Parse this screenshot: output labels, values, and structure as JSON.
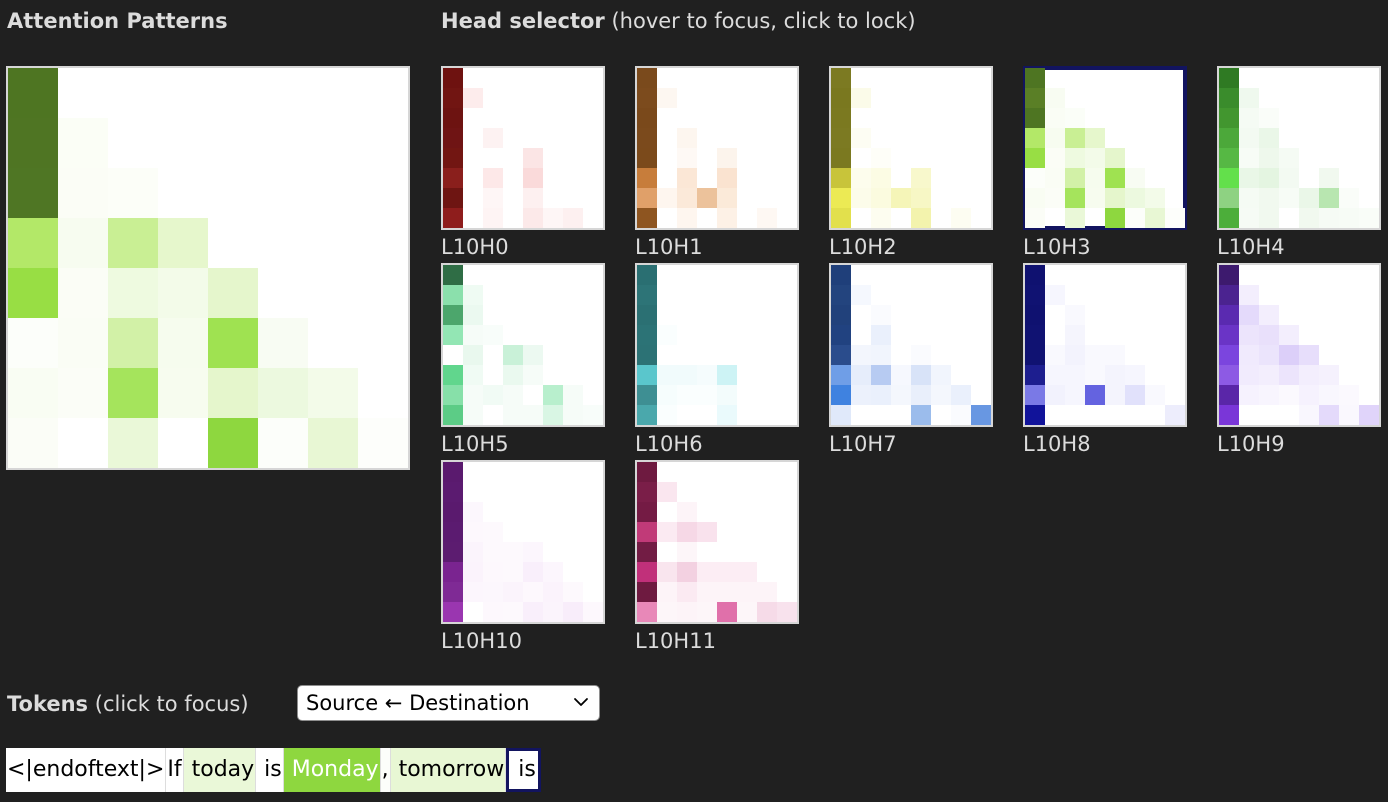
{
  "attention_panel": {
    "title": "Attention Patterns"
  },
  "head_selector": {
    "title": "Head selector",
    "hint": "(hover to focus, click to lock)",
    "locked_head": "L10H3",
    "heads": [
      {
        "label": "L10H0",
        "base": "#6e1210",
        "row_colors": {
          "1": [
            "#ffffff",
            "#fdecec"
          ],
          "3": [
            "#ffffff",
            "#ffffff",
            "#fdf2f2"
          ],
          "4": [
            "#ffffff",
            "#ffffff",
            "#ffffff",
            "#ffffff",
            "#fbe5e5"
          ],
          "5": [
            "#ffffff",
            "#ffffff",
            "#fde8e8",
            "#ffffff",
            "#fadada"
          ],
          "6": [
            "#ffffff",
            "#ffffff",
            "#fef6f6",
            "#ffffff",
            "#fdf0f0"
          ],
          "7": [
            "#ffffff",
            "#ffffff",
            "#fef4f4",
            "#ffffff",
            "#fce9e9",
            "#fef6f6",
            "#fdf0f0"
          ]
        },
        "col0": [
          "#6e1210",
          "#711512",
          "#6d1311",
          "#6f1414",
          "#721612",
          "#8a1f1c",
          "#6e1512",
          "#8e1d1c"
        ]
      },
      {
        "label": "L10H1",
        "base": "#7a4a1c",
        "row_colors": {
          "1": [
            "#ffffff",
            "#fdf7f1"
          ],
          "3": [
            "#ffffff",
            "#ffffff",
            "#fdf6ef"
          ],
          "4": [
            "#ffffff",
            "#ffffff",
            "#fef9f5",
            "#ffffff",
            "#fcf4ec"
          ],
          "5": [
            "#ffffff",
            "#ffffff",
            "#fbe7d6",
            "#ffffff",
            "#fae3d0"
          ],
          "6": [
            "#ffffff",
            "#fef6ef",
            "#fbe9d9",
            "#ecc29b",
            "#fbead9"
          ],
          "7": [
            "#ffffff",
            "#ffffff",
            "#fef6ef",
            "#ffffff",
            "#fdf1e6",
            "#ffffff",
            "#fef8f3"
          ]
        },
        "col0": [
          "#7a4a1c",
          "#7c4b1d",
          "#7a491b",
          "#7b4a1c",
          "#7b4a1b",
          "#c77d3b",
          "#e0a069",
          "#8e5520"
        ]
      },
      {
        "label": "L10H2",
        "base": "#7c7a22",
        "row_colors": {
          "1": [
            "#ffffff",
            "#fbfbe9"
          ],
          "3": [
            "#ffffff",
            "#fdfdf3"
          ],
          "4": [
            "#ffffff",
            "#ffffff",
            "#fefef8"
          ],
          "5": [
            "#ffffff",
            "#fdfded",
            "#fcfce4",
            "#ffffff",
            "#f8f8cc"
          ],
          "6": [
            "#ffffff",
            "#fcfcea",
            "#fbfbdf",
            "#f5f5b8",
            "#f7f7c5"
          ],
          "7": [
            "#ffffff",
            "#ffffff",
            "#fdfdf0",
            "#ffffff",
            "#f3f3ad",
            "#ffffff",
            "#fdfdf2"
          ]
        },
        "col0": [
          "#7c7a22",
          "#7a781f",
          "#7b7920",
          "#7c7a22",
          "#7b7920",
          "#c8c43a",
          "#ecea54",
          "#e2e04c"
        ]
      },
      {
        "label": "L10H3",
        "base": "#4e7522",
        "row_colors": {
          "1": [
            "#ffffff",
            "#f8fcf2"
          ],
          "2": [
            "#ffffff",
            "#fafdf5",
            "#fbfef8"
          ],
          "3": [
            "#b3e868",
            "#f7fcf0",
            "#c9ef94",
            "#e6f7cc"
          ],
          "4": [
            "#98de44",
            "#fbfdf6",
            "#eefae0",
            "#f3fbe9",
            "#e5f6cc"
          ],
          "5": [
            "#fcfefa",
            "#fafdf5",
            "#d2f1a7",
            "#f6fcee",
            "#9fe251",
            "#f8fcf3"
          ],
          "6": [
            "#f9fdf3",
            "#fbfdf7",
            "#a5e45c",
            "#f7fcef",
            "#e5f6cc",
            "#ecf9df",
            "#f3fbe9"
          ],
          "7": [
            "#fbfdf7",
            "#ffffff",
            "#eaf8d8",
            "#ffffff",
            "#8ed73f",
            "#fcfefa",
            "#e8f7d4",
            "#fdfefb"
          ]
        },
        "col0": [
          "#4e7522",
          "#5a7f26",
          "#4e7522",
          "#b3e868",
          "#98de44",
          "#fcfefa",
          "#f9fdf3",
          "#fbfdf7"
        ]
      },
      {
        "label": "L10H4",
        "base": "#2f7a23",
        "row_colors": {
          "1": [
            "#ffffff",
            "#eff9ee"
          ],
          "2": [
            "#ffffff",
            "#f5fbf4",
            "#fafdf9"
          ],
          "3": [
            "#ffffff",
            "#f3faf2",
            "#eaf7e8"
          ],
          "4": [
            "#ffffff",
            "#f7fcf6",
            "#eef8ec",
            "#f5fbf4"
          ],
          "5": [
            "#ffffff",
            "#e9f7e7",
            "#e4f5e1",
            "#f3faf2",
            "#ffffff",
            "#f1f9ef"
          ],
          "6": [
            "#ffffff",
            "#f5fbf4",
            "#f1f9ef",
            "#f7fcf6",
            "#eaf7e8",
            "#b8e6b0",
            "#fafdf9"
          ],
          "7": [
            "#ffffff",
            "#f6fbf5",
            "#f1f9ef",
            "#ffffff",
            "#f1f9ef",
            "#f6fbf5",
            "#f7fcf6",
            "#f9fdf8"
          ]
        },
        "col0": [
          "#2f7a23",
          "#3a8c2c",
          "#42962f",
          "#4ca83a",
          "#56b844",
          "#63e04b",
          "#8ed282",
          "#4cae3a"
        ]
      },
      {
        "label": "L10H5",
        "base": "#2f6d45",
        "row_colors": {
          "1": [
            "#ffffff",
            "#effbf3"
          ],
          "2": [
            "#a9ebc4",
            "#ebf9f0"
          ],
          "3": [
            "#ffffff",
            "#f6fcf8",
            "#f8fdfa"
          ],
          "4": [
            "#ffffff",
            "#e9f8ee",
            "#ffffff",
            "#c9f1d8",
            "#ecf9f1"
          ],
          "5": [
            "#ffffff",
            "#f0fbf4",
            "#ffffff",
            "#eaf9ef",
            "#f6fcf8"
          ],
          "6": [
            "#ffffff",
            "#f6fcf8",
            "#f1fbf5",
            "#f6fcf8",
            "#ffffff",
            "#b8efcd",
            "#f6fcf8"
          ],
          "7": [
            "#ffffff",
            "#f6fcf8",
            "#ffffff",
            "#f6fcf8",
            "#f6fcf8",
            "#d9f6e4",
            "#f6fcf8",
            "#f8fdfa"
          ]
        },
        "col0": [
          "#2f6d45",
          "#8be0ac",
          "#4ca66c",
          "#93e6b4",
          "#ffffff",
          "#61d68d",
          "#87e0a9",
          "#5ccc86"
        ]
      },
      {
        "label": "L10H6",
        "base": "#2a6f72",
        "row_colors": {
          "3": [
            "#ffffff",
            "#fafefe"
          ],
          "5": [
            "#ffffff",
            "#f1fbfc",
            "#f1fbfc",
            "#f5fcfd",
            "#cdf3f5"
          ],
          "6": [
            "#ffffff",
            "#f6fdfd",
            "#fafefe",
            "#fafefe",
            "#f3fcfc"
          ],
          "7": [
            "#ffffff",
            "#fafefe",
            "#ffffff",
            "#ffffff",
            "#eafafc"
          ]
        },
        "col0": [
          "#2a6f72",
          "#2d7477",
          "#2b7073",
          "#2c7376",
          "#2c7275",
          "#5ac6cc",
          "#3e8f93",
          "#4aa8ac"
        ]
      },
      {
        "label": "L10H7",
        "base": "#1f3f7a",
        "row_colors": {
          "1": [
            "#ffffff",
            "#f5f8fe"
          ],
          "2": [
            "#ffffff",
            "#ffffff",
            "#fafbfe"
          ],
          "3": [
            "#ffffff",
            "#ffffff",
            "#eaf0fc"
          ],
          "4": [
            "#ffffff",
            "#f3f6fd",
            "#f1f5fd",
            "#ffffff",
            "#fafbfe"
          ],
          "5": [
            "#ffffff",
            "#e6edfb",
            "#b7cbf2",
            "#f6f8fe",
            "#d8e3f8",
            "#f1f5fd"
          ],
          "6": [
            "#ffffff",
            "#ecf1fc",
            "#eaf0fc",
            "#f4f7fd",
            "#e9effb",
            "#f4f7fd",
            "#eaf0fc"
          ],
          "7": [
            "#e0e9fa",
            "#ffffff",
            "#ffffff",
            "#ffffff",
            "#9bbcec",
            "#ffffff",
            "#fafbfe",
            "#6897e2"
          ]
        },
        "col0": [
          "#1f3f7a",
          "#23447e",
          "#21417b",
          "#214280",
          "#2a4c8c",
          "#6f9ee7",
          "#3f82e0",
          "#e0e9fa"
        ]
      },
      {
        "label": "L10H8",
        "base": "#0f1170",
        "row_colors": {
          "1": [
            "#ffffff",
            "#f6f6fe"
          ],
          "2": [
            "#ffffff",
            "#ffffff",
            "#f9f9fe"
          ],
          "3": [
            "#ffffff",
            "#ffffff",
            "#f5f5fd"
          ],
          "4": [
            "#ffffff",
            "#f9f9fe",
            "#f3f3fd",
            "#f9f9fe",
            "#f9f9fe"
          ],
          "5": [
            "#ffffff",
            "#f6f6fe",
            "#f6f6fe",
            "#f9f9fe",
            "#f4f4fd",
            "#f6f6fe"
          ],
          "6": [
            "#ffffff",
            "#f2f2fd",
            "#f6f6fe",
            "#6463e0",
            "#f4f4fd",
            "#e1e1fb",
            "#f9f9fe"
          ],
          "7": [
            "#ffffff",
            "#ffffff",
            "#ffffff",
            "#ffffff",
            "#ffffff",
            "#ffffff",
            "#ffffff",
            "#ededfc"
          ]
        },
        "col0": [
          "#0f1170",
          "#101272",
          "#0f1170",
          "#101272",
          "#101272",
          "#1d1e8f",
          "#7a79e6",
          "#11139a"
        ]
      },
      {
        "label": "L10H9",
        "base": "#3d1a6e",
        "row_colors": {
          "1": [
            "#ffffff",
            "#f3eefd"
          ],
          "2": [
            "#ffffff",
            "#e4dafb",
            "#f3eefd"
          ],
          "3": [
            "#ffffff",
            "#ece4fc",
            "#e9e0fb",
            "#f3eefd"
          ],
          "4": [
            "#ffffff",
            "#f0eafd",
            "#ebe4fc",
            "#dccff9",
            "#e7defb"
          ],
          "5": [
            "#ffffff",
            "#f1ebfd",
            "#f3eefd",
            "#ece4fc",
            "#f3eefd",
            "#f5f1fd"
          ],
          "6": [
            "#ffffff",
            "#f6f2fe",
            "#f8f5fe",
            "#fbf9fe",
            "#f6f2fe",
            "#f9f7fe",
            "#fbf9fe"
          ],
          "7": [
            "#ffffff",
            "#ffffff",
            "#ffffff",
            "#ffffff",
            "#f9f7fe",
            "#e4dafb",
            "#faf8fe",
            "#e0d4fa"
          ]
        },
        "col0": [
          "#3d1a6e",
          "#4b2390",
          "#5a2ab0",
          "#6a34c6",
          "#7b45de",
          "#8d5ae4",
          "#5a26a8",
          "#7a36d8"
        ]
      },
      {
        "label": "L10H10",
        "base": "#5a1a6e",
        "row_colors": {
          "2": [
            "#ffffff",
            "#fcf7fd"
          ],
          "3": [
            "#ffffff",
            "#fdf8fd",
            "#fdf9fd"
          ],
          "4": [
            "#ffffff",
            "#fbf4fc",
            "#fdf9fd",
            "#fdf9fd",
            "#fcf6fd"
          ],
          "5": [
            "#ffffff",
            "#fbf3fc",
            "#fdf8fd",
            "#fdf9fd",
            "#f9effb",
            "#fcf6fd"
          ],
          "6": [
            "#ffffff",
            "#fcf6fd",
            "#fcf7fd",
            "#fbf4fc",
            "#fdf8fd",
            "#fbf3fc",
            "#fdf9fd"
          ],
          "7": [
            "#ffffff",
            "#ffffff",
            "#fdf8fd",
            "#fdf9fd",
            "#f9effb",
            "#fbf4fc",
            "#f8edfa",
            "#fdf8fd"
          ]
        },
        "col0": [
          "#5a1a6e",
          "#5b1b70",
          "#5a1a6e",
          "#5b1b70",
          "#5c1c70",
          "#7a2490",
          "#7f2a95",
          "#9a36b0"
        ]
      },
      {
        "label": "L10H11",
        "base": "#6e1a40",
        "row_colors": {
          "1": [
            "#ffffff",
            "#fae6ef"
          ],
          "2": [
            "#ffffff",
            "#ffffff",
            "#fdf4f8"
          ],
          "3": [
            "#ffffff",
            "#fbeaf2",
            "#f6d8e6",
            "#f9e2ed"
          ],
          "4": [
            "#ffffff",
            "#ffffff",
            "#fdf6f9"
          ],
          "5": [
            "#ffffff",
            "#f9e5ee",
            "#f3d1e1",
            "#fcedf4",
            "#fcedf4",
            "#fcedf4"
          ],
          "6": [
            "#ffffff",
            "#fdf4f8",
            "#fbeaf2",
            "#fdf4f8",
            "#fdf4f8",
            "#fdf4f8",
            "#fdf4f8"
          ],
          "7": [
            "#ffffff",
            "#fdf6f9",
            "#fdf4f8",
            "#fdf6f9",
            "#e070aa",
            "#fdf6f9",
            "#f6dbe8",
            "#f8e2ed"
          ]
        },
        "col0": [
          "#6e1a40",
          "#7a1e48",
          "#741b44",
          "#c13a78",
          "#721c44",
          "#c1307a",
          "#6e1a40",
          "#e888b8"
        ]
      }
    ]
  },
  "main_pattern": {
    "size": 8,
    "rows": [
      [
        "#4e7522"
      ],
      [
        "#4f7523",
        "#fbfef6"
      ],
      [
        "#4f7624",
        "#fbfdf6",
        "#fcfef8"
      ],
      [
        "#b3e868",
        "#f7fcf0",
        "#c9ef94",
        "#e6f7cc"
      ],
      [
        "#98de44",
        "#fbfdf6",
        "#eefae0",
        "#f3fbe9",
        "#e5f6cc"
      ],
      [
        "#fcfefa",
        "#fafdf5",
        "#d2f1a7",
        "#f6fcee",
        "#9fe251",
        "#f8fcf3"
      ],
      [
        "#f9fdf3",
        "#fbfdf7",
        "#a5e45c",
        "#f7fcef",
        "#e5f6cc",
        "#ecf9df",
        "#f3fbe9"
      ],
      [
        "#fbfdf7",
        "#ffffff",
        "#eaf8d8",
        "#ffffff",
        "#8ed73f",
        "#fcfefa",
        "#e8f7d4",
        "#fdfefb"
      ]
    ]
  },
  "tokens_section": {
    "title": "Tokens",
    "hint": "(click to focus)",
    "direction_select": {
      "selected": "Source ← Destination"
    },
    "tokens": [
      {
        "text": "<|endoftext|>",
        "bg": "#ffffff",
        "dark": false,
        "locked": false
      },
      {
        "text": "If",
        "bg": "#ffffff",
        "dark": false,
        "locked": false
      },
      {
        "text": " today",
        "bg": "#eaf8d8",
        "dark": false,
        "locked": false
      },
      {
        "text": " is",
        "bg": "#ffffff",
        "dark": false,
        "locked": false
      },
      {
        "text": " Monday",
        "bg": "#8ed73f",
        "dark": true,
        "locked": false
      },
      {
        "text": ",",
        "bg": "#fcfefa",
        "dark": false,
        "locked": false
      },
      {
        "text": " tomorrow",
        "bg": "#e8f7d4",
        "dark": false,
        "locked": false
      },
      {
        "text": " is",
        "bg": "#ffffff",
        "dark": false,
        "locked": true
      }
    ]
  }
}
